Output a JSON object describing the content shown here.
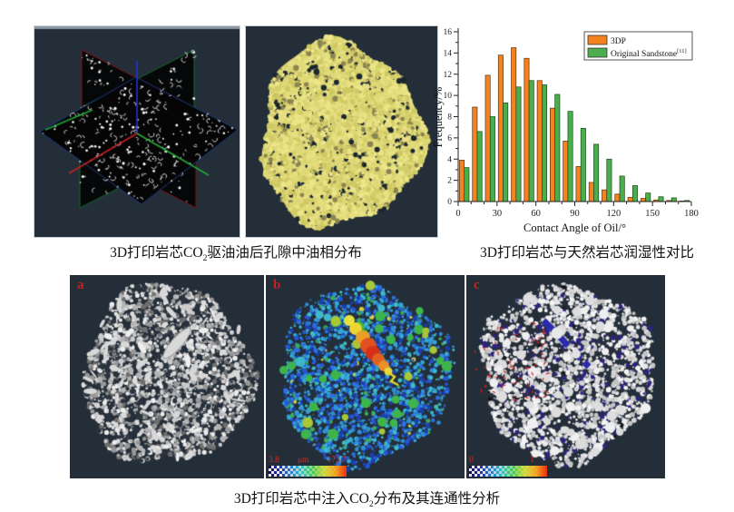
{
  "captions": {
    "top_left": {
      "pre": "3D打印岩芯CO",
      "sub": "2",
      "post": "驱油油后孔隙中油相分布"
    },
    "top_right": {
      "text": "3D打印岩芯与天然岩芯润湿性对比"
    },
    "bottom": {
      "pre": "3D打印岩芯中注入CO",
      "sub": "2",
      "post": "分布及其连通性分析"
    }
  },
  "chart_data": {
    "type": "bar",
    "title": "",
    "xlabel": "Contact Angle of Oil/°",
    "ylabel": "Frequency/%",
    "xlim": [
      0,
      180
    ],
    "ylim": [
      0,
      16
    ],
    "x_ticks": [
      0,
      30,
      60,
      90,
      120,
      150,
      180
    ],
    "y_ticks": [
      0,
      2,
      4,
      6,
      8,
      10,
      12,
      14,
      16
    ],
    "bin_width": 10,
    "grid": false,
    "legend_position": "top-right",
    "series": [
      {
        "name": "3DP",
        "superscript": "",
        "color": "#F5821F",
        "edge": "#533616",
        "values": [
          3.9,
          8.9,
          11.9,
          13.8,
          14.5,
          13.5,
          11.4,
          8.8,
          5.7,
          3.3,
          1.8,
          1.1,
          0.7,
          0.4,
          0.3,
          0.15,
          0.1,
          0.05
        ]
      },
      {
        "name": "Original Sandstone",
        "superscript": "[11]",
        "color": "#4BAE4C",
        "edge": "#1d4a1d",
        "values": [
          3.2,
          6.6,
          8.0,
          9.3,
          10.8,
          11.4,
          11.0,
          10.1,
          8.5,
          6.9,
          5.4,
          4.0,
          2.4,
          1.5,
          0.8,
          0.45,
          0.35,
          0.1
        ]
      }
    ]
  },
  "panels": {
    "slices": {
      "description": "orthogonal CT slice planes with residual oil specks"
    },
    "oil": {
      "description": "3D rendered residual oil phase",
      "blob_color": "#E9E388"
    },
    "a": {
      "label": "a"
    },
    "b": {
      "label": "b",
      "colorbar": {
        "min": "3.8",
        "unit": "μm",
        "max": "173.7"
      }
    },
    "c": {
      "label": "c",
      "colorbar": {
        "min": "0",
        "max": "1"
      }
    }
  },
  "colors": {
    "panel_bg": "#242E39",
    "label_red": "#C42120",
    "bar_orange": "#F5821F",
    "bar_green": "#4BAE4C",
    "oil_yellow": "#E9E388"
  }
}
